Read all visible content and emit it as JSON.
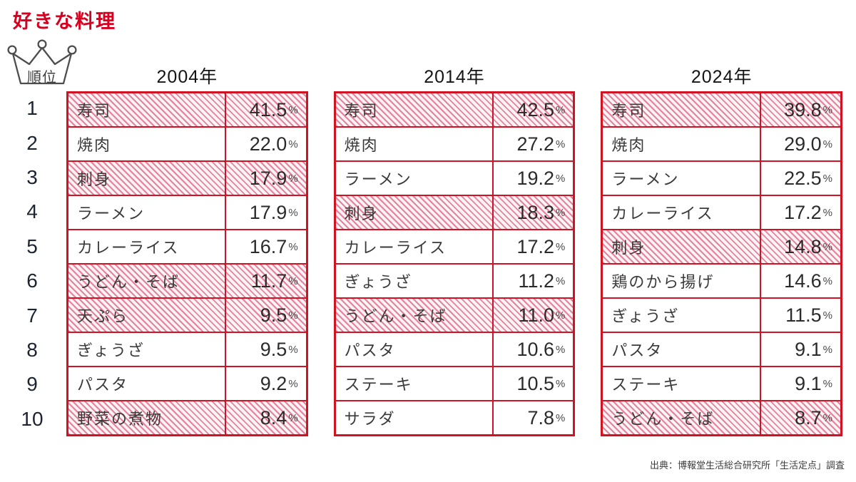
{
  "title": "好きな料理",
  "rank_badge": {
    "label": "順位"
  },
  "source": "出典：博報堂生活総合研究所「生活定点」調査",
  "colors": {
    "title_red": "#d7001f",
    "accent_red": "#cf1322",
    "hatch_pink": "#e8819c",
    "text_dark": "#3a3a3a"
  },
  "chart_data": {
    "type": "table",
    "title": "好きな料理",
    "percent_suffix": "%",
    "legend_note": "hatched rows = highlighted dishes",
    "tables": [
      {
        "year": "2004年",
        "rows": [
          {
            "rank": "1",
            "name": "寿司",
            "value": "41.5",
            "highlighted": true
          },
          {
            "rank": "2",
            "name": "焼肉",
            "value": "22.0",
            "highlighted": false
          },
          {
            "rank": "3",
            "name": "刺身",
            "value": "17.9",
            "highlighted": true
          },
          {
            "rank": "4",
            "name": "ラーメン",
            "value": "17.9",
            "highlighted": false
          },
          {
            "rank": "5",
            "name": "カレーライス",
            "value": "16.7",
            "highlighted": false
          },
          {
            "rank": "6",
            "name": "うどん・そば",
            "value": "11.7",
            "highlighted": true
          },
          {
            "rank": "7",
            "name": "天ぷら",
            "value": "9.5",
            "highlighted": true
          },
          {
            "rank": "8",
            "name": "ぎょうざ",
            "value": "9.5",
            "highlighted": false
          },
          {
            "rank": "9",
            "name": "パスタ",
            "value": "9.2",
            "highlighted": false
          },
          {
            "rank": "10",
            "name": "野菜の煮物",
            "value": "8.4",
            "highlighted": true
          }
        ]
      },
      {
        "year": "2014年",
        "rows": [
          {
            "rank": "1",
            "name": "寿司",
            "value": "42.5",
            "highlighted": true
          },
          {
            "rank": "2",
            "name": "焼肉",
            "value": "27.2",
            "highlighted": false
          },
          {
            "rank": "3",
            "name": "ラーメン",
            "value": "19.2",
            "highlighted": false
          },
          {
            "rank": "4",
            "name": "刺身",
            "value": "18.3",
            "highlighted": true
          },
          {
            "rank": "5",
            "name": "カレーライス",
            "value": "17.2",
            "highlighted": false
          },
          {
            "rank": "6",
            "name": "ぎょうざ",
            "value": "11.2",
            "highlighted": false
          },
          {
            "rank": "7",
            "name": "うどん・そば",
            "value": "11.0",
            "highlighted": true
          },
          {
            "rank": "8",
            "name": "パスタ",
            "value": "10.6",
            "highlighted": false
          },
          {
            "rank": "9",
            "name": "ステーキ",
            "value": "10.5",
            "highlighted": false
          },
          {
            "rank": "10",
            "name": "サラダ",
            "value": "7.8",
            "highlighted": false
          }
        ]
      },
      {
        "year": "2024年",
        "rows": [
          {
            "rank": "1",
            "name": "寿司",
            "value": "39.8",
            "highlighted": true
          },
          {
            "rank": "2",
            "name": "焼肉",
            "value": "29.0",
            "highlighted": false
          },
          {
            "rank": "3",
            "name": "ラーメン",
            "value": "22.5",
            "highlighted": false
          },
          {
            "rank": "4",
            "name": "カレーライス",
            "value": "17.2",
            "highlighted": false
          },
          {
            "rank": "5",
            "name": "刺身",
            "value": "14.8",
            "highlighted": true
          },
          {
            "rank": "6",
            "name": "鶏のから揚げ",
            "value": "14.6",
            "highlighted": false
          },
          {
            "rank": "7",
            "name": "ぎょうざ",
            "value": "11.5",
            "highlighted": false
          },
          {
            "rank": "8",
            "name": "パスタ",
            "value": "9.1",
            "highlighted": false
          },
          {
            "rank": "9",
            "name": "ステーキ",
            "value": "9.1",
            "highlighted": false
          },
          {
            "rank": "10",
            "name": "うどん・そば",
            "value": "8.7",
            "highlighted": true
          }
        ]
      }
    ]
  }
}
